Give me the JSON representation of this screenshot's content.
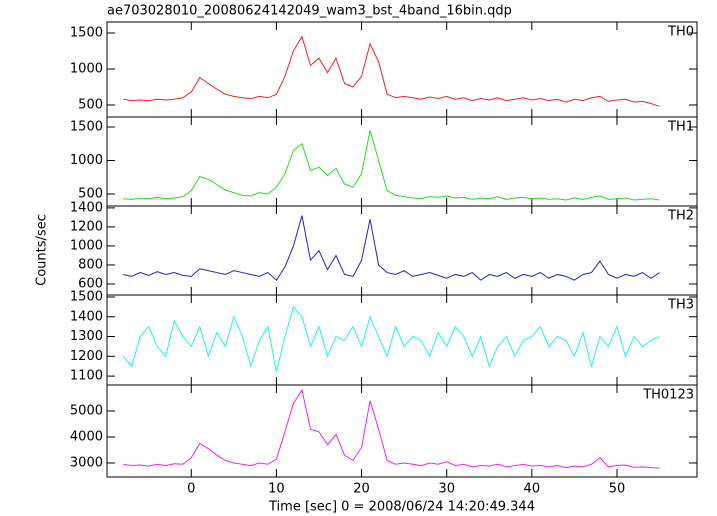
{
  "title": "ae703028010_20080624142049_wam3_bst_4band_16bin.qdp",
  "ylabel": "Counts/sec",
  "xlabel": "Time [sec] 0 = 2008/06/24 14:20:49.344",
  "chart_data": [
    {
      "type": "line",
      "label": "TH0",
      "color": "#ee2222",
      "ylim": [
        333,
        1653
      ],
      "yticks": [
        500,
        1000,
        1500
      ],
      "x": [
        -8,
        -7,
        -6,
        -5,
        -4,
        -3,
        -2,
        -1,
        0,
        1,
        2,
        3,
        4,
        5,
        6,
        7,
        8,
        9,
        10,
        11,
        12,
        13,
        14,
        15,
        16,
        17,
        18,
        19,
        20,
        21,
        22,
        23,
        24,
        25,
        26,
        27,
        28,
        29,
        30,
        31,
        32,
        33,
        34,
        35,
        36,
        37,
        38,
        39,
        40,
        41,
        42,
        43,
        44,
        45,
        46,
        47,
        48,
        49,
        50,
        51,
        52,
        53,
        54,
        55
      ],
      "values": [
        580,
        560,
        570,
        560,
        580,
        570,
        580,
        600,
        680,
        880,
        800,
        720,
        650,
        620,
        600,
        590,
        620,
        600,
        650,
        900,
        1250,
        1450,
        1050,
        1150,
        950,
        1150,
        800,
        750,
        900,
        1350,
        1100,
        650,
        600,
        620,
        600,
        580,
        610,
        590,
        620,
        580,
        600,
        560,
        590,
        570,
        600,
        560,
        580,
        600,
        570,
        590,
        560,
        580,
        540,
        580,
        560,
        600,
        620,
        550,
        570,
        580,
        540,
        550,
        520,
        480
      ]
    },
    {
      "type": "line",
      "label": "TH1",
      "color": "#22dd22",
      "ylim": [
        321,
        1649
      ],
      "yticks": [
        500,
        1000,
        1500
      ],
      "x": [
        -8,
        -7,
        -6,
        -5,
        -4,
        -3,
        -2,
        -1,
        0,
        1,
        2,
        3,
        4,
        5,
        6,
        7,
        8,
        9,
        10,
        11,
        12,
        13,
        14,
        15,
        16,
        17,
        18,
        19,
        20,
        21,
        22,
        23,
        24,
        25,
        26,
        27,
        28,
        29,
        30,
        31,
        32,
        33,
        34,
        35,
        36,
        37,
        38,
        39,
        40,
        41,
        42,
        43,
        44,
        45,
        46,
        47,
        48,
        49,
        50,
        51,
        52,
        53,
        54,
        55
      ],
      "values": [
        430,
        420,
        440,
        430,
        450,
        430,
        440,
        460,
        550,
        760,
        720,
        640,
        560,
        520,
        480,
        470,
        520,
        500,
        600,
        800,
        1150,
        1250,
        850,
        900,
        780,
        880,
        650,
        600,
        800,
        1450,
        1000,
        550,
        480,
        460,
        440,
        430,
        460,
        450,
        470,
        440,
        450,
        420,
        440,
        430,
        460,
        420,
        440,
        450,
        430,
        440,
        420,
        430,
        410,
        440,
        420,
        450,
        470,
        420,
        430,
        440,
        410,
        420,
        430,
        410
      ]
    },
    {
      "type": "line",
      "label": "TH2",
      "color": "#2222cc",
      "ylim": [
        484,
        1420
      ],
      "yticks": [
        600,
        800,
        1000,
        1200,
        1400
      ],
      "x": [
        -8,
        -7,
        -6,
        -5,
        -4,
        -3,
        -2,
        -1,
        0,
        1,
        2,
        3,
        4,
        5,
        6,
        7,
        8,
        9,
        10,
        11,
        12,
        13,
        14,
        15,
        16,
        17,
        18,
        19,
        20,
        21,
        22,
        23,
        24,
        25,
        26,
        27,
        28,
        29,
        30,
        31,
        32,
        33,
        34,
        35,
        36,
        37,
        38,
        39,
        40,
        41,
        42,
        43,
        44,
        45,
        46,
        47,
        48,
        49,
        50,
        51,
        52,
        53,
        54,
        55
      ],
      "values": [
        700,
        680,
        720,
        690,
        730,
        700,
        720,
        690,
        680,
        760,
        740,
        720,
        700,
        740,
        720,
        700,
        680,
        720,
        640,
        780,
        1000,
        1320,
        850,
        950,
        750,
        900,
        700,
        680,
        850,
        1280,
        800,
        720,
        700,
        740,
        680,
        700,
        720,
        690,
        660,
        700,
        680,
        720,
        640,
        700,
        680,
        720,
        660,
        700,
        680,
        720,
        660,
        700,
        680,
        640,
        700,
        720,
        840,
        700,
        660,
        700,
        680,
        720,
        660,
        720
      ]
    },
    {
      "type": "line",
      "label": "TH3",
      "color": "#22eeee",
      "ylim": [
        1055,
        1510
      ],
      "yticks": [
        1100,
        1200,
        1300,
        1400,
        1500
      ],
      "x": [
        -8,
        -7,
        -6,
        -5,
        -4,
        -3,
        -2,
        -1,
        0,
        1,
        2,
        3,
        4,
        5,
        6,
        7,
        8,
        9,
        10,
        11,
        12,
        13,
        14,
        15,
        16,
        17,
        18,
        19,
        20,
        21,
        22,
        23,
        24,
        25,
        26,
        27,
        28,
        29,
        30,
        31,
        32,
        33,
        34,
        35,
        36,
        37,
        38,
        39,
        40,
        41,
        42,
        43,
        44,
        45,
        46,
        47,
        48,
        49,
        50,
        51,
        52,
        53,
        54,
        55
      ],
      "values": [
        1200,
        1150,
        1300,
        1350,
        1250,
        1200,
        1380,
        1300,
        1250,
        1350,
        1200,
        1320,
        1250,
        1400,
        1300,
        1150,
        1280,
        1350,
        1120,
        1300,
        1450,
        1400,
        1250,
        1350,
        1200,
        1300,
        1280,
        1350,
        1250,
        1400,
        1300,
        1200,
        1350,
        1250,
        1300,
        1280,
        1200,
        1320,
        1250,
        1350,
        1300,
        1200,
        1300,
        1150,
        1250,
        1300,
        1200,
        1280,
        1300,
        1350,
        1250,
        1300,
        1280,
        1200,
        1320,
        1150,
        1300,
        1250,
        1350,
        1200,
        1300,
        1250,
        1280,
        1300
      ]
    },
    {
      "type": "line",
      "label": "TH0123",
      "color": "#ee22ee",
      "ylim": [
        2460,
        6000
      ],
      "yticks": [
        3000,
        4000,
        5000
      ],
      "xlim": [
        -9.9,
        59.4
      ],
      "xticks": [
        0,
        10,
        20,
        30,
        40,
        50
      ],
      "x": [
        -8,
        -7,
        -6,
        -5,
        -4,
        -3,
        -2,
        -1,
        0,
        1,
        2,
        3,
        4,
        5,
        6,
        7,
        8,
        9,
        10,
        11,
        12,
        13,
        14,
        15,
        16,
        17,
        18,
        19,
        20,
        21,
        22,
        23,
        24,
        25,
        26,
        27,
        28,
        29,
        30,
        31,
        32,
        33,
        34,
        35,
        36,
        37,
        38,
        39,
        40,
        41,
        42,
        43,
        44,
        45,
        46,
        47,
        48,
        49,
        50,
        51,
        52,
        53,
        54,
        55
      ],
      "values": [
        2950,
        2900,
        2920,
        2880,
        2950,
        2900,
        2970,
        2950,
        3200,
        3750,
        3550,
        3300,
        3100,
        3000,
        2950,
        2900,
        3000,
        2950,
        3150,
        4200,
        5300,
        5800,
        4300,
        4200,
        3700,
        4100,
        3300,
        3100,
        3600,
        5400,
        4300,
        3100,
        2950,
        3000,
        2950,
        2900,
        3000,
        2950,
        3050,
        2900,
        2950,
        2850,
        2900,
        2880,
        2950,
        2850,
        2900,
        2950,
        2880,
        2900,
        2850,
        2900,
        2820,
        2880,
        2850,
        2950,
        3200,
        2850,
        2900,
        2920,
        2830,
        2850,
        2820,
        2800
      ]
    }
  ]
}
